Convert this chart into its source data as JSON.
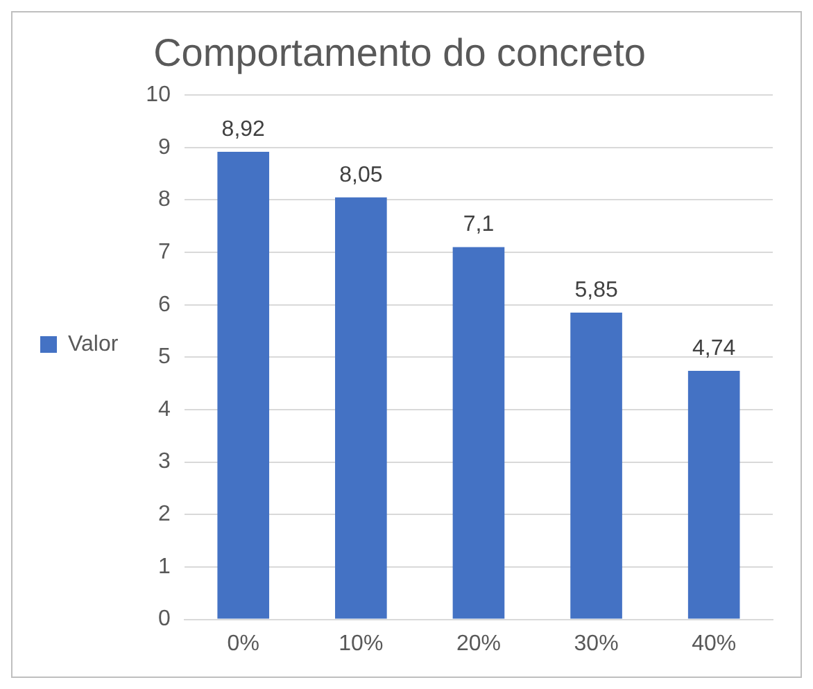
{
  "chart_data": {
    "type": "bar",
    "title": "Comportamento do concreto",
    "categories": [
      "0%",
      "10%",
      "20%",
      "30%",
      "40%"
    ],
    "series": [
      {
        "name": "Valor",
        "color": "#4472c4",
        "values": [
          8.92,
          8.05,
          7.1,
          5.85,
          4.74
        ]
      }
    ],
    "value_labels": [
      "8,92",
      "8,05",
      "7,1",
      "5,85",
      "4,74"
    ],
    "ylim": [
      0,
      10
    ],
    "yticks": [
      0,
      1,
      2,
      3,
      4,
      5,
      6,
      7,
      8,
      9,
      10
    ],
    "grid": "y",
    "legend": "left"
  }
}
